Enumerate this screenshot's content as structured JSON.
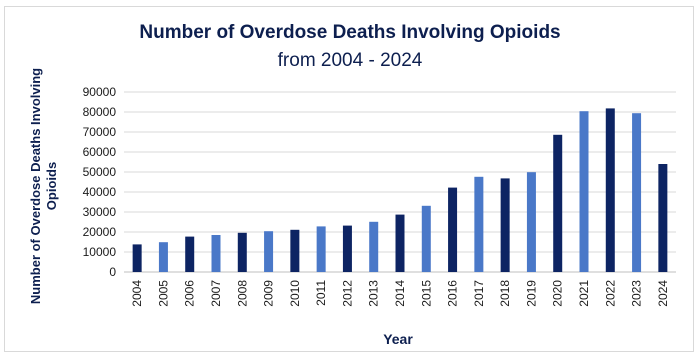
{
  "chart_data": {
    "type": "bar",
    "title": "Number of Overdose Deaths Involving Opioids",
    "subtitle": "from 2004 - 2024",
    "xlabel": "Year",
    "ylabel": "Number of Overdose Deaths Involving Opioids",
    "ylim": [
      0,
      90000
    ],
    "yticks": [
      "0",
      "10000",
      "20000",
      "30000",
      "40000",
      "50000",
      "60000",
      "70000",
      "80000",
      "90000"
    ],
    "grid": true,
    "categories": [
      "2004",
      "2005",
      "2006",
      "2007",
      "2008",
      "2009",
      "2010",
      "2011",
      "2012",
      "2013",
      "2014",
      "2015",
      "2016",
      "2017",
      "2018",
      "2019",
      "2020",
      "2021",
      "2022",
      "2023",
      "2024"
    ],
    "values": [
      13800,
      14900,
      17700,
      18500,
      19600,
      20400,
      21100,
      22800,
      23200,
      25100,
      28700,
      33100,
      42200,
      47600,
      46800,
      49900,
      68600,
      80400,
      81800,
      79400,
      54000
    ],
    "colors": {
      "dark": "#0d2463",
      "light": "#4a78c8",
      "grid": "#d9d9d9",
      "text": "#0d1f4f"
    }
  }
}
